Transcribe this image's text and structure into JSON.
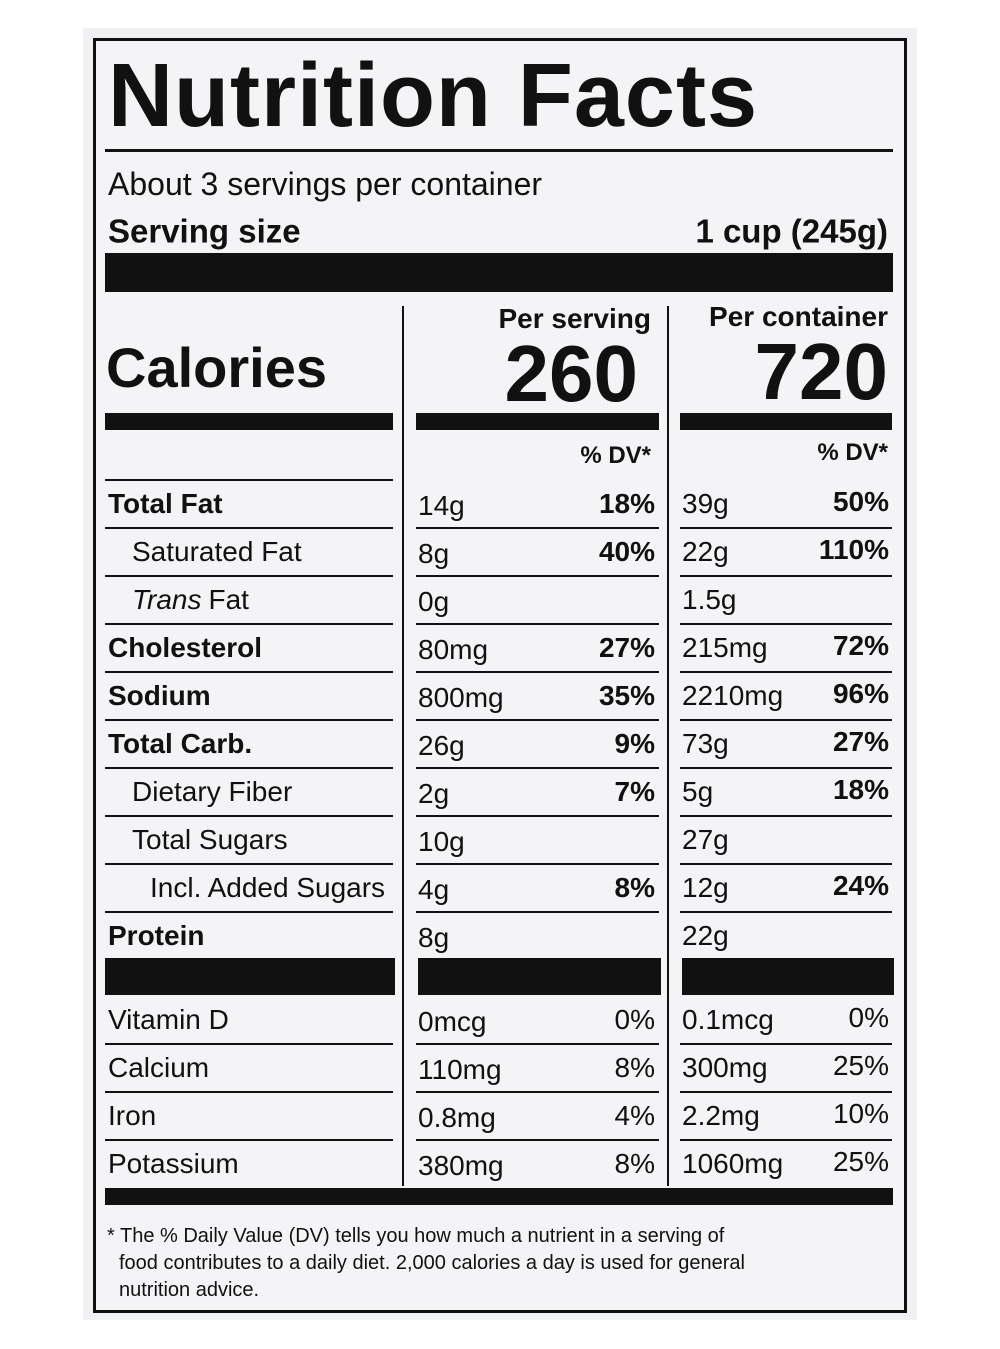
{
  "title": "Nutrition Facts",
  "servings_per_container": "About 3 servings per container",
  "serving_size": {
    "label": "Serving size",
    "value": "1 cup (245g)"
  },
  "columns": [
    "Per serving",
    "Per container"
  ],
  "calories": {
    "label": "Calories",
    "per_serving": 260,
    "per_container": 720
  },
  "dv_header": "% DV*",
  "nutrients": [
    {
      "name": "Total Fat",
      "bold": true,
      "indent": 0,
      "serving_amount": "14g",
      "serving_dv": "18%",
      "container_amount": "39g",
      "container_dv": "50%"
    },
    {
      "name": "Saturated Fat",
      "indent": 1,
      "serving_amount": "8g",
      "serving_dv": "40%",
      "container_amount": "22g",
      "container_dv": "110%"
    },
    {
      "italic_name": "Trans",
      "name": "Fat",
      "indent": 1,
      "serving_amount": "0g",
      "container_amount": "1.5g"
    },
    {
      "name": "Cholesterol",
      "bold": true,
      "indent": 0,
      "serving_amount": "80mg",
      "serving_dv": "27%",
      "container_amount": "215mg",
      "container_dv": "72%"
    },
    {
      "name": "Sodium",
      "bold": true,
      "indent": 0,
      "serving_amount": "800mg",
      "serving_dv": "35%",
      "container_amount": "2210mg",
      "container_dv": "96%"
    },
    {
      "name": "Total Carb.",
      "bold": true,
      "indent": 0,
      "serving_amount": "26g",
      "serving_dv": "9%",
      "container_amount": "73g",
      "container_dv": "27%"
    },
    {
      "name": "Dietary Fiber",
      "indent": 1,
      "serving_amount": "2g",
      "serving_dv": "7%",
      "container_amount": "5g",
      "container_dv": "18%"
    },
    {
      "name": "Total Sugars",
      "indent": 1,
      "serving_amount": "10g",
      "container_amount": "27g"
    },
    {
      "name": "Incl. Added Sugars",
      "indent": 2,
      "serving_amount": "4g",
      "serving_dv": "8%",
      "container_amount": "12g",
      "container_dv": "24%"
    },
    {
      "name": "Protein",
      "bold": true,
      "indent": 0,
      "serving_amount": "8g",
      "container_amount": "22g"
    }
  ],
  "vitamins": [
    {
      "name": "Vitamin D",
      "serving_amount": "0mcg",
      "serving_dv": "0%",
      "container_amount": "0.1mcg",
      "container_dv": "0%"
    },
    {
      "name": "Calcium",
      "serving_amount": "110mg",
      "serving_dv": "8%",
      "container_amount": "300mg",
      "container_dv": "25%"
    },
    {
      "name": "Iron",
      "serving_amount": "0.8mg",
      "serving_dv": "4%",
      "container_amount": "2.2mg",
      "container_dv": "10%"
    },
    {
      "name": "Potassium",
      "serving_amount": "380mg",
      "serving_dv": "8%",
      "container_amount": "1060mg",
      "container_dv": "25%"
    }
  ],
  "footnote": [
    "* The % Daily Value (DV) tells you how much a nutrient in a serving of",
    "food contributes to a daily diet. 2,000 calories a day is used for general",
    "nutrition advice."
  ]
}
